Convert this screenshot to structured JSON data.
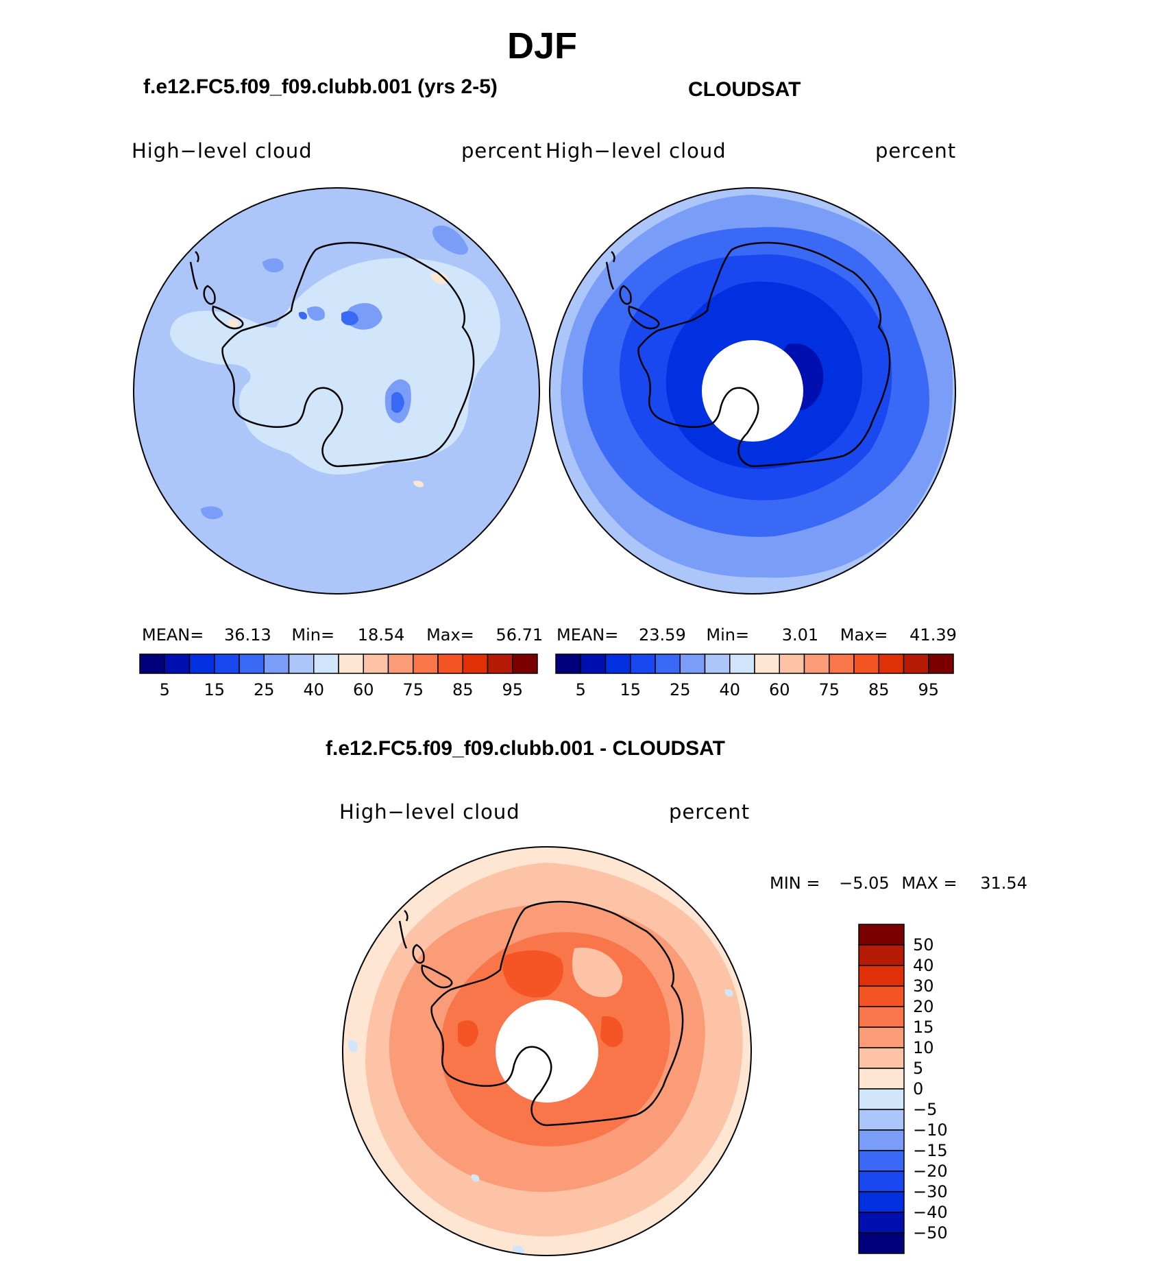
{
  "title": "DJF",
  "panels": [
    {
      "case_title": "f.e12.FC5.f09_f09.clubb.001 (yrs 2-5)",
      "variable": "High−level  cloud",
      "units": "percent",
      "stats": {
        "mean_label": "MEAN=",
        "mean": "36.13",
        "min_label": "Min=",
        "min": "18.54",
        "max_label": "Max=",
        "max": "56.71"
      }
    },
    {
      "case_title": "CLOUDSAT",
      "variable": "High−level  cloud",
      "units": "percent",
      "stats": {
        "mean_label": "MEAN=",
        "mean": "23.59",
        "min_label": "Min=",
        "min": "3.01",
        "max_label": "Max=",
        "max": "41.39"
      }
    }
  ],
  "diff_panel": {
    "case_title": "f.e12.FC5.f09_f09.clubb.001 - CLOUDSAT",
    "variable": "High−level  cloud",
    "units": "percent",
    "min_label": "MIN =",
    "min": "−5.05",
    "max_label": "MAX =",
    "max": "31.54"
  },
  "colorbar_abs": {
    "colors": [
      "#00007a",
      "#0010b0",
      "#0030e0",
      "#1a48f0",
      "#3a6af5",
      "#7a9ef8",
      "#adc6fa",
      "#d2e6fb",
      "#ffe6d2",
      "#fcc3a6",
      "#fb9c78",
      "#f8764a",
      "#f55525",
      "#e03008",
      "#b51a05",
      "#7a0000"
    ],
    "labels": [
      "5",
      "15",
      "25",
      "40",
      "60",
      "75",
      "85",
      "95"
    ]
  },
  "colorbar_diff": {
    "colors_top_to_bottom": [
      "#7a0000",
      "#b51a05",
      "#e03008",
      "#f55525",
      "#f8764a",
      "#fb9c78",
      "#fcc3a6",
      "#ffe6d2",
      "#d2e6fb",
      "#adc6fa",
      "#7a9ef8",
      "#3a6af5",
      "#1a48f0",
      "#0030e0",
      "#0010b0",
      "#00007a"
    ],
    "labels": [
      "50",
      "40",
      "30",
      "20",
      "15",
      "10",
      "5",
      "0",
      "−5",
      "−10",
      "−15",
      "−20",
      "−30",
      "−40",
      "−50"
    ]
  },
  "map_colors": {
    "model_base": "#adc6fa",
    "model_light": "#d2e6fb",
    "model_mid": "#7a9ef8",
    "model_dark": "#3a6af5",
    "model_warm": "#ffe6d2",
    "obs_outer": "#adc6fa",
    "obs_mid": "#7a9ef8",
    "obs_c1": "#3a6af5",
    "obs_c2": "#1a48f0",
    "obs_c3": "#0030e0",
    "obs_c4": "#0010b0",
    "diff_outer": "#ffe6d2",
    "diff_c1": "#fcc3a6",
    "diff_c2": "#fb9c78",
    "diff_c3": "#f8764a",
    "diff_c4": "#f55525",
    "diff_blue": "#d2e6fb",
    "diff_blue2": "#adc6fa"
  }
}
